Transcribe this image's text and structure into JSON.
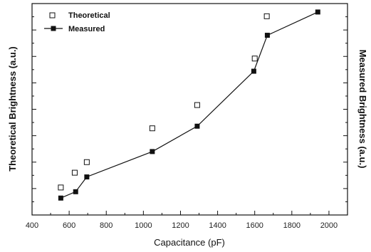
{
  "chart_data": {
    "type": "line",
    "xlabel": "Capacitance (pF)",
    "ylabel_left": "Theoretical Brightness (a.u.)",
    "ylabel_right": "Measured Brightness (a.u.)",
    "xlim": [
      400,
      2100
    ],
    "ylim": [
      0,
      1
    ],
    "x_ticks": [
      400,
      600,
      800,
      1000,
      1200,
      1400,
      1600,
      1800,
      2000
    ],
    "y_tick_labels_shown": false,
    "grid": false,
    "legend_position": "top-left",
    "series": [
      {
        "name": "Theoretical",
        "marker": "open-square",
        "line": false,
        "x": [
          555,
          630,
          695,
          1048,
          1290,
          1600,
          1665
        ],
        "y": [
          0.13,
          0.2,
          0.25,
          0.41,
          0.52,
          0.74,
          0.94
        ]
      },
      {
        "name": "Measured",
        "marker": "filled-square",
        "line": true,
        "x": [
          555,
          635,
          695,
          1048,
          1290,
          1595,
          1668,
          1940
        ],
        "y": [
          0.08,
          0.11,
          0.18,
          0.3,
          0.42,
          0.68,
          0.85,
          0.96
        ]
      }
    ]
  }
}
